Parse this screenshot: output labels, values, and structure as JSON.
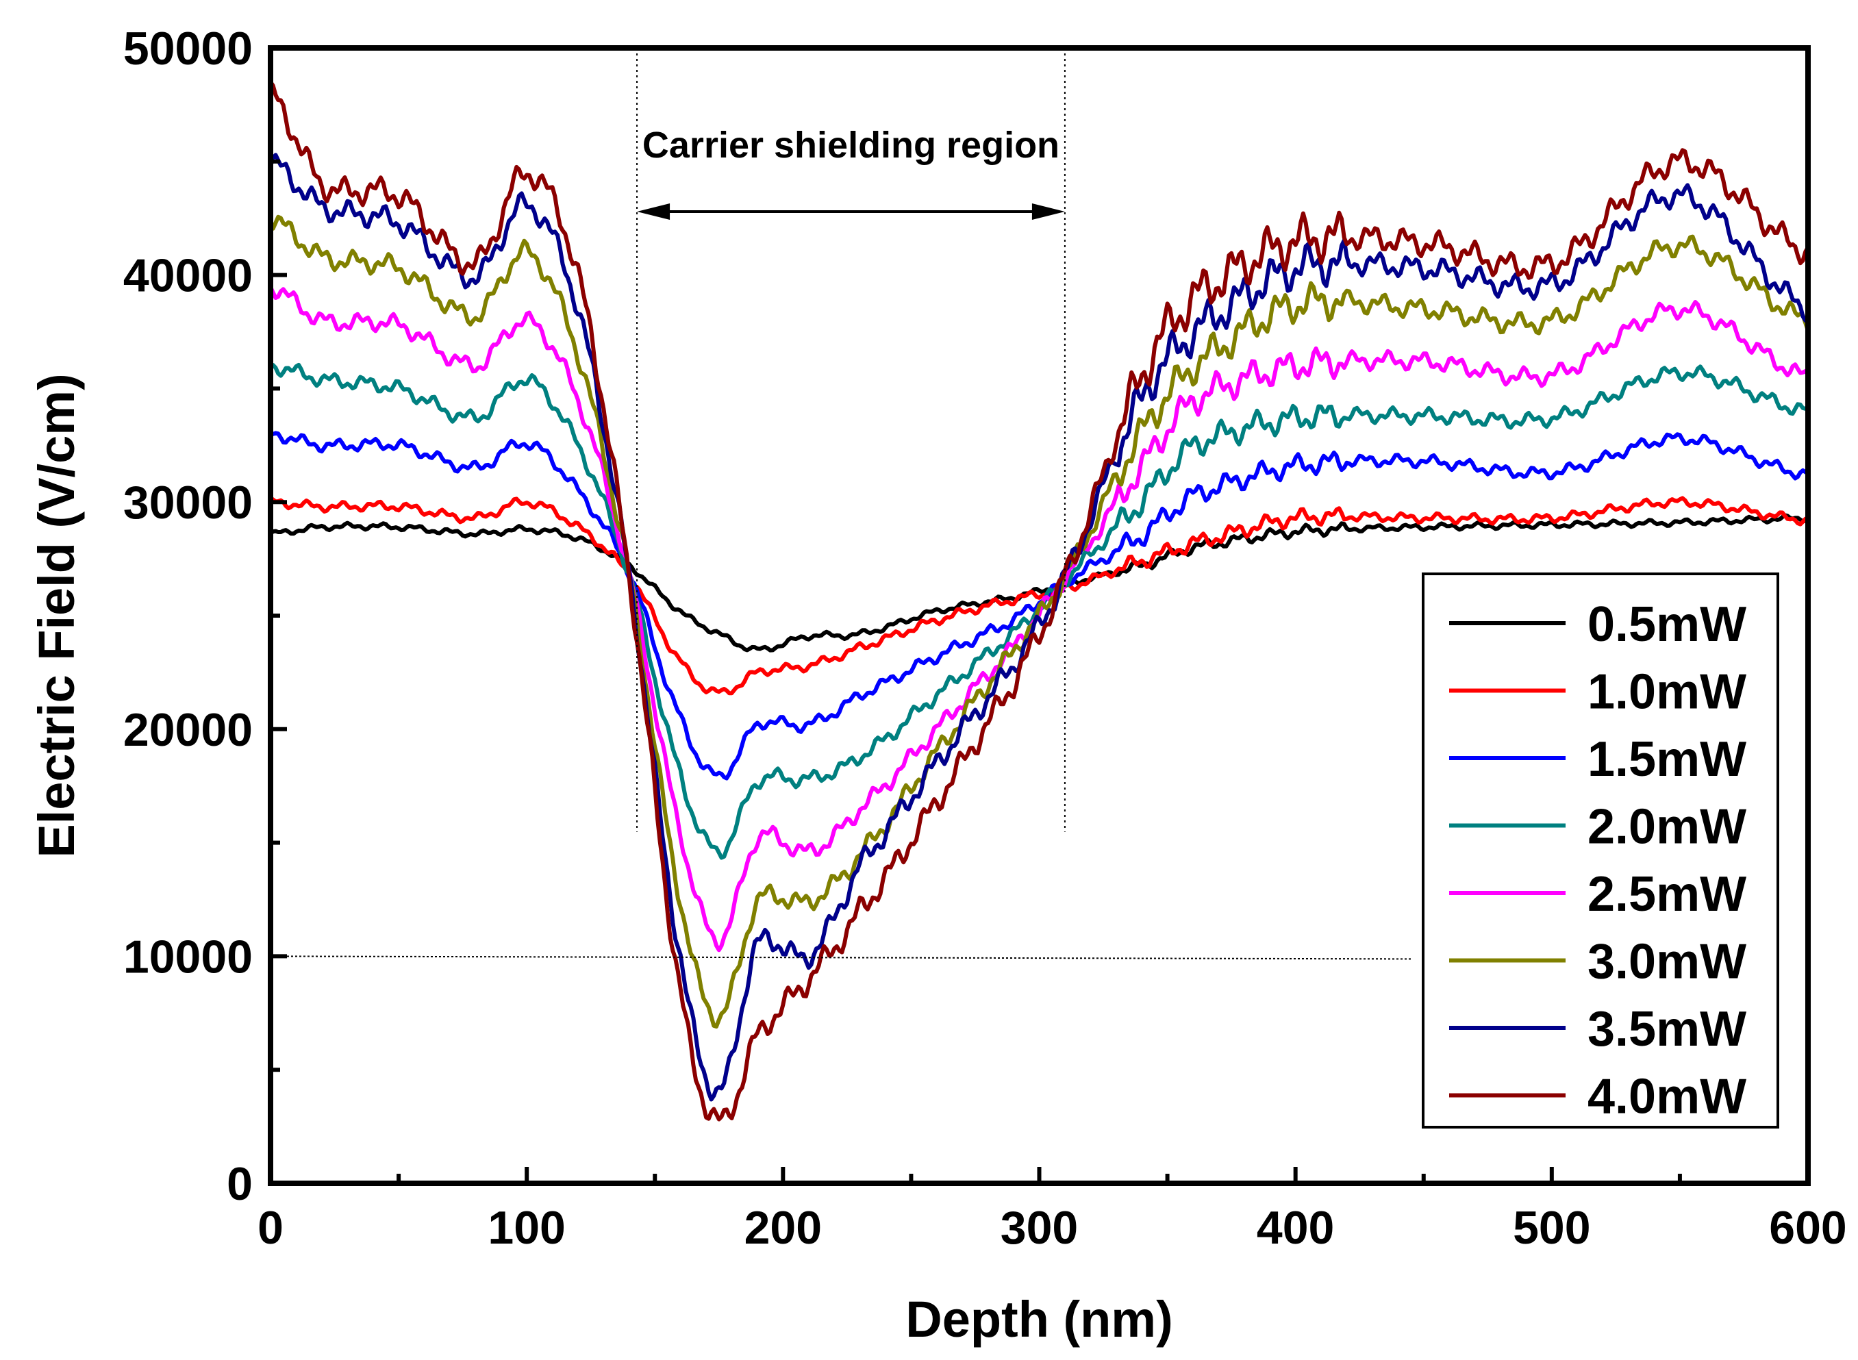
{
  "chart_data": {
    "type": "line",
    "title": "",
    "xlabel": "Depth (nm)",
    "ylabel": "Electric Field (V/cm)",
    "xlim": [
      0,
      600
    ],
    "ylim": [
      0,
      50000
    ],
    "xticks": [
      0,
      100,
      200,
      300,
      400,
      500,
      600
    ],
    "xtick_labels": [
      "0",
      "100",
      "200",
      "300",
      "400",
      "500",
      "600"
    ],
    "yticks": [
      0,
      10000,
      20000,
      30000,
      40000,
      50000
    ],
    "ytick_labels": [
      "0",
      "10000",
      "20000",
      "30000",
      "40000",
      "50000"
    ],
    "grid": false,
    "legend_position": "bottom-right",
    "annotation": {
      "text": "Carrier shielding region",
      "x_start": 143,
      "x_end": 310,
      "reference_level": 10000
    },
    "series": [
      {
        "name": "0.5mW",
        "color": "#000000",
        "x": [
          0,
          20,
          50,
          80,
          100,
          120,
          140,
          160,
          175,
          190,
          210,
          230,
          260,
          290,
          310,
          340,
          360,
          400,
          450,
          500,
          550,
          600
        ],
        "values": [
          28600,
          28900,
          28900,
          28600,
          28800,
          28400,
          27200,
          25200,
          24200,
          23500,
          24100,
          24200,
          25200,
          25800,
          26400,
          27200,
          28000,
          28700,
          28900,
          29000,
          29100,
          29300
        ]
      },
      {
        "name": "1.0mW",
        "color": "#ff0000",
        "x": [
          0,
          20,
          50,
          80,
          100,
          120,
          140,
          160,
          175,
          190,
          210,
          230,
          260,
          290,
          310,
          340,
          360,
          400,
          450,
          500,
          550,
          600
        ],
        "values": [
          30000,
          29800,
          29800,
          29300,
          30000,
          28900,
          26800,
          23000,
          21600,
          22500,
          22800,
          23600,
          24800,
          25700,
          26200,
          27400,
          28200,
          29300,
          29300,
          29300,
          30000,
          29200
        ]
      },
      {
        "name": "1.5mW",
        "color": "#0000ff",
        "x": [
          0,
          20,
          50,
          80,
          100,
          120,
          140,
          160,
          175,
          190,
          210,
          230,
          260,
          290,
          310,
          340,
          360,
          400,
          450,
          500,
          550,
          600
        ],
        "values": [
          33000,
          32500,
          32500,
          31500,
          32600,
          30500,
          26900,
          20500,
          17900,
          20200,
          20200,
          21500,
          23200,
          24800,
          26500,
          28500,
          30300,
          31600,
          31800,
          31300,
          32800,
          31200
        ]
      },
      {
        "name": "2.0mW",
        "color": "#008080",
        "x": [
          0,
          20,
          50,
          80,
          100,
          120,
          140,
          160,
          175,
          190,
          210,
          230,
          260,
          290,
          310,
          340,
          360,
          400,
          450,
          500,
          550,
          600
        ],
        "values": [
          36000,
          35400,
          35000,
          33700,
          35400,
          32500,
          26800,
          18000,
          14600,
          17700,
          17800,
          18800,
          21500,
          24200,
          26600,
          30000,
          32500,
          33700,
          33800,
          33700,
          35700,
          34000
        ]
      },
      {
        "name": "2.5mW",
        "color": "#ff00ff",
        "x": [
          0,
          20,
          50,
          80,
          100,
          120,
          140,
          160,
          175,
          190,
          210,
          230,
          260,
          290,
          310,
          340,
          360,
          400,
          450,
          500,
          550,
          600
        ],
        "values": [
          39500,
          38000,
          37800,
          36000,
          38000,
          34500,
          26800,
          15500,
          10700,
          15200,
          14600,
          16500,
          20000,
          23600,
          26700,
          31500,
          34500,
          36000,
          36200,
          35600,
          38500,
          35500
        ]
      },
      {
        "name": "3.0mW",
        "color": "#808000",
        "x": [
          0,
          20,
          50,
          80,
          100,
          120,
          140,
          160,
          175,
          190,
          210,
          230,
          260,
          290,
          310,
          340,
          360,
          400,
          450,
          500,
          550,
          600
        ],
        "values": [
          42500,
          40800,
          40300,
          38200,
          41000,
          36500,
          26700,
          12500,
          7300,
          12400,
          12400,
          14500,
          19000,
          23400,
          26800,
          33000,
          36000,
          38700,
          38500,
          38000,
          41300,
          38000
        ]
      },
      {
        "name": "3.5mW",
        "color": "#00008b",
        "x": [
          0,
          20,
          50,
          80,
          100,
          120,
          140,
          160,
          175,
          190,
          210,
          230,
          260,
          290,
          310,
          340,
          360,
          400,
          450,
          500,
          550,
          600
        ],
        "values": [
          45000,
          43000,
          42300,
          39900,
          43100,
          38500,
          26700,
          10000,
          4000,
          10500,
          10000,
          14000,
          18500,
          22800,
          26800,
          34500,
          37500,
          40300,
          40300,
          39600,
          43500,
          38500
        ]
      },
      {
        "name": "4.0mW",
        "color": "#8b0000",
        "x": [
          0,
          20,
          50,
          80,
          100,
          120,
          140,
          160,
          175,
          190,
          210,
          230,
          260,
          290,
          310,
          340,
          360,
          400,
          450,
          500,
          550,
          600
        ],
        "values": [
          48000,
          44000,
          43500,
          40500,
          44500,
          40000,
          26700,
          8500,
          2700,
          6500,
          9000,
          12000,
          16800,
          22000,
          26800,
          35500,
          39000,
          41500,
          41400,
          40500,
          45000,
          41000
        ]
      }
    ]
  }
}
